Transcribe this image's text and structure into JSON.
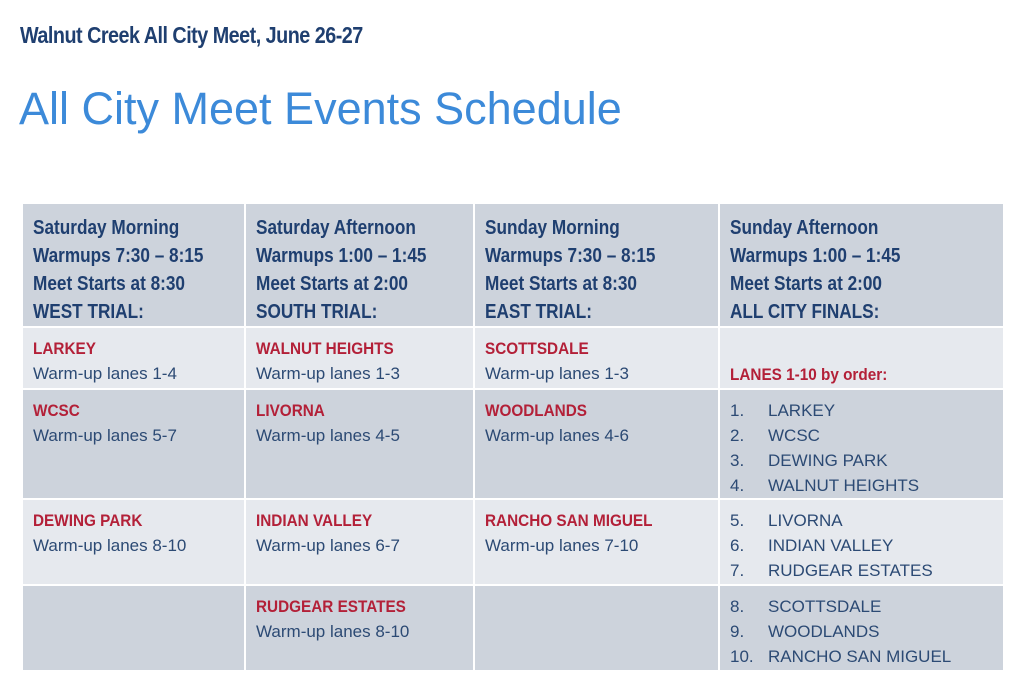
{
  "header": {
    "subtitle": "Walnut Creek All City Meet, June 26-27",
    "title": "All City Meet Events Schedule"
  },
  "columns": [
    {
      "lines": [
        "Saturday Morning",
        "Warmups 7:30 – 8:15",
        "Meet Starts at 8:30",
        "WEST TRIAL:"
      ]
    },
    {
      "lines": [
        "Saturday Afternoon",
        "Warmups 1:00 – 1:45",
        "Meet Starts at 2:00",
        "SOUTH TRIAL:"
      ]
    },
    {
      "lines": [
        "Sunday Morning",
        "Warmups 7:30 – 8:15",
        "Meet Starts at 8:30",
        "EAST TRIAL:"
      ]
    },
    {
      "lines": [
        "Sunday Afternoon",
        "Warmups 1:00 – 1:45",
        "Meet Starts at 2:00",
        "ALL CITY FINALS:"
      ]
    }
  ],
  "rows": [
    {
      "cells": [
        {
          "team": "LARKEY",
          "lanes": "Warm-up lanes 1-4"
        },
        {
          "team": "WALNUT HEIGHTS",
          "lanes": "Warm-up lanes 1-3"
        },
        {
          "team": "SCOTTSDALE",
          "lanes": "Warm-up lanes 1-3"
        }
      ]
    },
    {
      "cells": [
        {
          "team": "WCSC",
          "lanes": "Warm-up lanes 5-7"
        },
        {
          "team": "LIVORNA",
          "lanes": "Warm-up lanes 4-5"
        },
        {
          "team": "WOODLANDS",
          "lanes": "Warm-up lanes 4-6"
        }
      ]
    },
    {
      "cells": [
        {
          "team": "DEWING PARK",
          "lanes": "Warm-up lanes 8-10"
        },
        {
          "team": "INDIAN VALLEY",
          "lanes": "Warm-up lanes 6-7"
        },
        {
          "team": "RANCHO SAN MIGUEL",
          "lanes": "Warm-up lanes 7-10"
        }
      ]
    },
    {
      "cells": [
        {
          "team": "",
          "lanes": ""
        },
        {
          "team": "RUDGEAR ESTATES",
          "lanes": "Warm-up lanes 8-10"
        },
        {
          "team": "",
          "lanes": ""
        }
      ]
    }
  ],
  "finals": {
    "heading": "LANES 1-10 by order:",
    "order": [
      {
        "num": "1.",
        "team": "LARKEY"
      },
      {
        "num": "2.",
        "team": "WCSC"
      },
      {
        "num": "3.",
        "team": "DEWING PARK"
      },
      {
        "num": "4.",
        "team": "WALNUT HEIGHTS"
      },
      {
        "num": "5.",
        "team": "LIVORNA"
      },
      {
        "num": "6.",
        "team": "INDIAN VALLEY"
      },
      {
        "num": "7.",
        "team": "RUDGEAR ESTATES"
      },
      {
        "num": "8.",
        "team": "SCOTTSDALE"
      },
      {
        "num": "9.",
        "team": "WOODLANDS"
      },
      {
        "num": "10.",
        "team": "RANCHO SAN MIGUEL"
      }
    ]
  },
  "colors": {
    "title": "#3c8ad9",
    "subtitle": "#1f3f70",
    "team": "#b32038",
    "body_text": "#2c4a74",
    "cell_dark": "#cdd3dc",
    "cell_light": "#e6e9ee"
  }
}
